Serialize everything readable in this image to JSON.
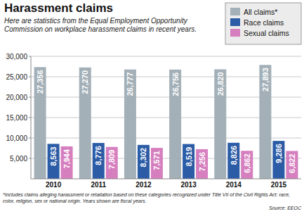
{
  "chart_data": {
    "type": "bar",
    "title": "Harassment claims",
    "subtitle": "Here are statistics from the Equal Employment Opportunity Commission on workplace harassment claims in recent years.",
    "categories": [
      "2010",
      "2011",
      "2012",
      "2013",
      "2014",
      "2015"
    ],
    "series": [
      {
        "name": "All claims*",
        "color": "#a3b0b8",
        "values": [
          27356,
          27270,
          26777,
          26756,
          26820,
          27893
        ],
        "value_labels": [
          "27,356",
          "27,270",
          "26,777",
          "26,756",
          "26,820",
          "27,893"
        ]
      },
      {
        "name": "Race claims",
        "color": "#2c5ca6",
        "values": [
          8563,
          8776,
          8302,
          8519,
          8826,
          9286
        ],
        "value_labels": [
          "8,563",
          "8,776",
          "8,302",
          "8,519",
          "8,826",
          "9,286"
        ]
      },
      {
        "name": "Sexual claims",
        "color": "#d67fbf",
        "values": [
          7944,
          7809,
          7571,
          7256,
          6862,
          6822
        ],
        "value_labels": [
          "7,944",
          "7,809",
          "7,571",
          "7,256",
          "6,862",
          "6,822"
        ]
      }
    ],
    "ylim": [
      0,
      30000
    ],
    "yticks": [
      {
        "value": 5000,
        "label": "5,000"
      },
      {
        "value": 10000,
        "label": "10,000"
      },
      {
        "value": 15000,
        "label": "15,000"
      },
      {
        "value": 20000,
        "label": "20,000"
      },
      {
        "value": 25000,
        "label": "25,000"
      },
      {
        "value": 30000,
        "label": "30,000"
      }
    ],
    "grid": true,
    "legend": "top-right",
    "data_labels": true,
    "footnote": "*Includes claims alleging harassment or retaliation based on these categories recognized under Title VII of the Civil Rights Act: race, color, religion, sex or national origin. Years shown are fiscal years.",
    "source": "Source: EEOC"
  }
}
